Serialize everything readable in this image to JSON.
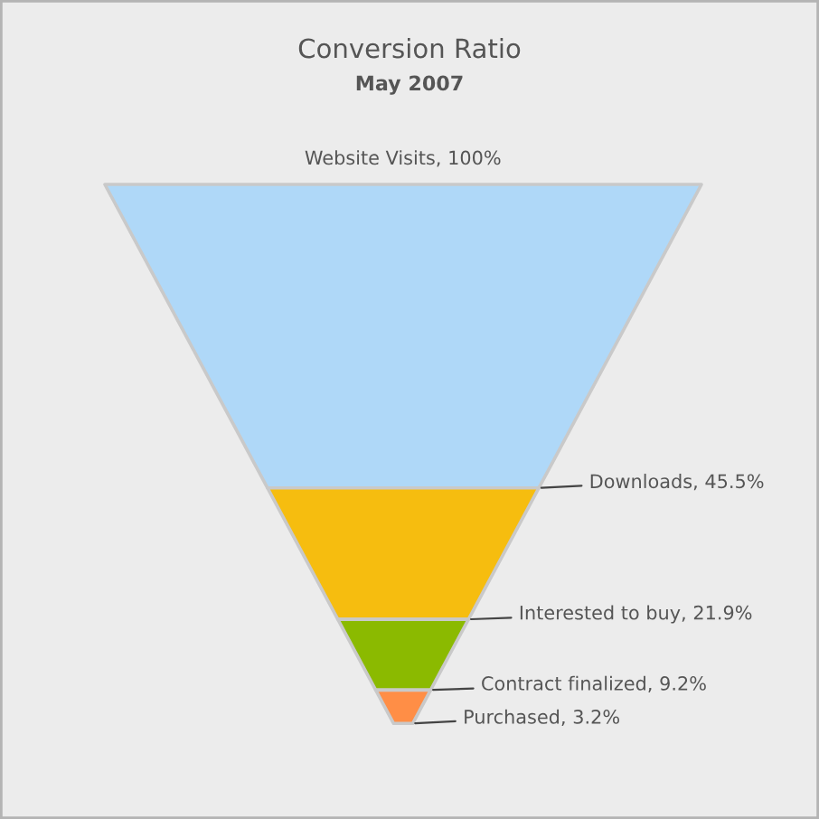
{
  "chart_data": {
    "type": "other",
    "title": "Conversion Ratio",
    "subtitle": "May 2007",
    "categories": [
      "Website Visits",
      "Downloads",
      "Interested to buy",
      "Contract finalized",
      "Purchased"
    ],
    "values": [
      100,
      45.5,
      21.9,
      9.2,
      3.2
    ],
    "value_labels": [
      "100%",
      "45.5%",
      "21.9%",
      "9.2%",
      "3.2%"
    ],
    "annotations": [
      ",",
      ",",
      ",",
      ",",
      ","
    ],
    "colors": [
      null,
      "#afd8f8",
      "#f6bd0f",
      "#8bba00",
      "#ff8e46"
    ]
  }
}
